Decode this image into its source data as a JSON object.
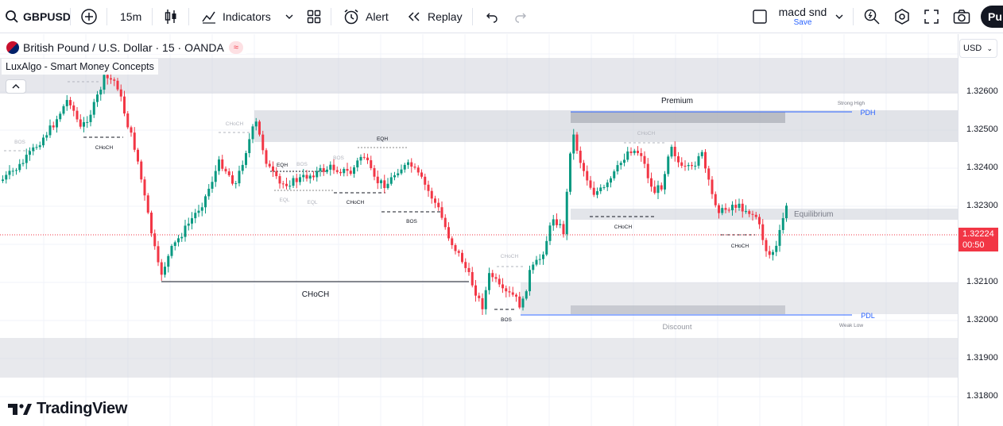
{
  "toolbar": {
    "symbol": "GBPUSD",
    "interval": "15m",
    "indicators_label": "Indicators",
    "alert_label": "Alert",
    "replay_label": "Replay",
    "layout_name": "macd snd",
    "layout_save": "Save",
    "publish_label": "Pu"
  },
  "legend": {
    "title": "British Pound / U.S. Dollar · 15 · OANDA",
    "indicator": "LuxAlgo - Smart Money Concepts"
  },
  "price_axis": {
    "currency": "USD",
    "ticks": [
      "1.32600",
      "1.32500",
      "1.32400",
      "1.32300",
      "1.32100",
      "1.32000",
      "1.31900",
      "1.31800"
    ],
    "current_price": "1.32224",
    "countdown": "00:50",
    "current_color": "#f23645"
  },
  "annotations": {
    "premium": "Premium",
    "equilibrium": "Equilibrium",
    "discount": "Discount",
    "pdh": "PDH",
    "pdl": "PDL",
    "strong_high": "Strong High",
    "weak_low": "Weak Low",
    "choch_main": "CHoCH",
    "labels": [
      "BOS",
      "CHoCH",
      "CHoCH",
      "EQH",
      "BOS",
      "EQH",
      "BOS",
      "EQL",
      "EQL",
      "CHoCH",
      "BOS",
      "CHoCH",
      "CHoCH",
      "BOS",
      "CHoCH",
      "CHoCH"
    ]
  },
  "colors": {
    "bull": "#089981",
    "bear": "#f23645",
    "level_line": "#2962ff",
    "zone": "#d1d4dc"
  },
  "branding": "TradingView"
}
